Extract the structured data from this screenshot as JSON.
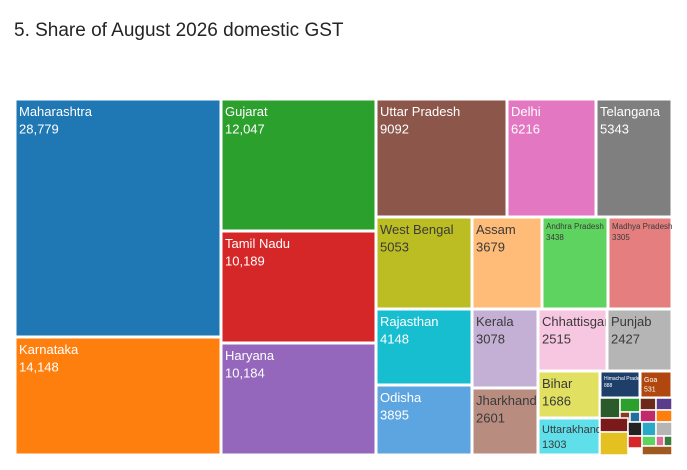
{
  "title": "5. Share of August 2026 domestic GST",
  "chart_data": {
    "type": "treemap",
    "title": "5. Share of August 2026 domestic GST",
    "items": [
      {
        "name": "Maharashtra",
        "value_label": "28,779",
        "value": 28779,
        "color": "#1F77B4",
        "text": "#ffffff"
      },
      {
        "name": "Karnataka",
        "value_label": "14,148",
        "value": 14148,
        "color": "#FF7F0E",
        "text": "#ffffff"
      },
      {
        "name": "Gujarat",
        "value_label": "12,047",
        "value": 12047,
        "color": "#2CA02C",
        "text": "#ffffff"
      },
      {
        "name": "Tamil Nadu",
        "value_label": "10,189",
        "value": 10189,
        "color": "#D62728",
        "text": "#ffffff"
      },
      {
        "name": "Haryana",
        "value_label": "10,184",
        "value": 10184,
        "color": "#9467BD",
        "text": "#ffffff"
      },
      {
        "name": "Uttar Pradesh",
        "value_label": "9092",
        "value": 9092,
        "color": "#8C564B",
        "text": "#ffffff"
      },
      {
        "name": "Delhi",
        "value_label": "6216",
        "value": 6216,
        "color": "#E377C2",
        "text": "#ffffff"
      },
      {
        "name": "Telangana",
        "value_label": "5343",
        "value": 5343,
        "color": "#7F7F7F",
        "text": "#ffffff"
      },
      {
        "name": "West Bengal",
        "value_label": "5053",
        "value": 5053,
        "color": "#BCBD22",
        "text": "#3a3a3a"
      },
      {
        "name": "Assam",
        "value_label": "3679",
        "value": 3679,
        "color": "#FFBB78",
        "text": "#3a3a3a"
      },
      {
        "name": "Andhra Pradesh",
        "value_label": "3438",
        "value": 3438,
        "color": "#5FD35F",
        "text": "#3a3a3a"
      },
      {
        "name": "Madhya Pradesh",
        "value_label": "3305",
        "value": 3305,
        "color": "#E57F7F",
        "text": "#3a3a3a"
      },
      {
        "name": "Rajasthan",
        "value_label": "4148",
        "value": 4148,
        "color": "#17BECF",
        "text": "#ffffff"
      },
      {
        "name": "Kerala",
        "value_label": "3078",
        "value": 3078,
        "color": "#C5B0D5",
        "text": "#3a3a3a"
      },
      {
        "name": "Chhattisgarh",
        "value_label": "2515",
        "value": 2515,
        "color": "#F7C6E0",
        "text": "#3a3a3a"
      },
      {
        "name": "Punjab",
        "value_label": "2427",
        "value": 2427,
        "color": "#B5B5B5",
        "text": "#3a3a3a"
      },
      {
        "name": "Odisha",
        "value_label": "3895",
        "value": 3895,
        "color": "#5DA5E0",
        "text": "#ffffff"
      },
      {
        "name": "Jharkhand",
        "value_label": "2601",
        "value": 2601,
        "color": "#B98C80",
        "text": "#3a3a3a"
      },
      {
        "name": "Bihar",
        "value_label": "1686",
        "value": 1686,
        "color": "#E1E061",
        "text": "#3a3a3a"
      },
      {
        "name": "Uttarakhand",
        "value_label": "1303",
        "value": 1303,
        "color": "#5FDFEA",
        "text": "#3a3a3a"
      },
      {
        "name": "Himachal Pradesh",
        "value_label": "888",
        "value": 888,
        "color": "#1F3F6B",
        "text": "#ffffff"
      },
      {
        "name": "Goa",
        "value_label": "531",
        "value": 531,
        "color": "#B0470E",
        "text": "#ffffff"
      }
    ],
    "small_tile_colors": [
      "#2B5A2B",
      "#2CA02C",
      "#6B2A1A",
      "#5A3D8A",
      "#8C3A1F",
      "#1F6FA0",
      "#C02A6A",
      "#FF7F0E",
      "#7A1A1A",
      "#222222",
      "#2AA8C8",
      "#B5B5B5",
      "#E4C020",
      "#D62728",
      "#5FD35F",
      "#E06A9A",
      "#3A7A3A",
      "#A05A20"
    ]
  }
}
